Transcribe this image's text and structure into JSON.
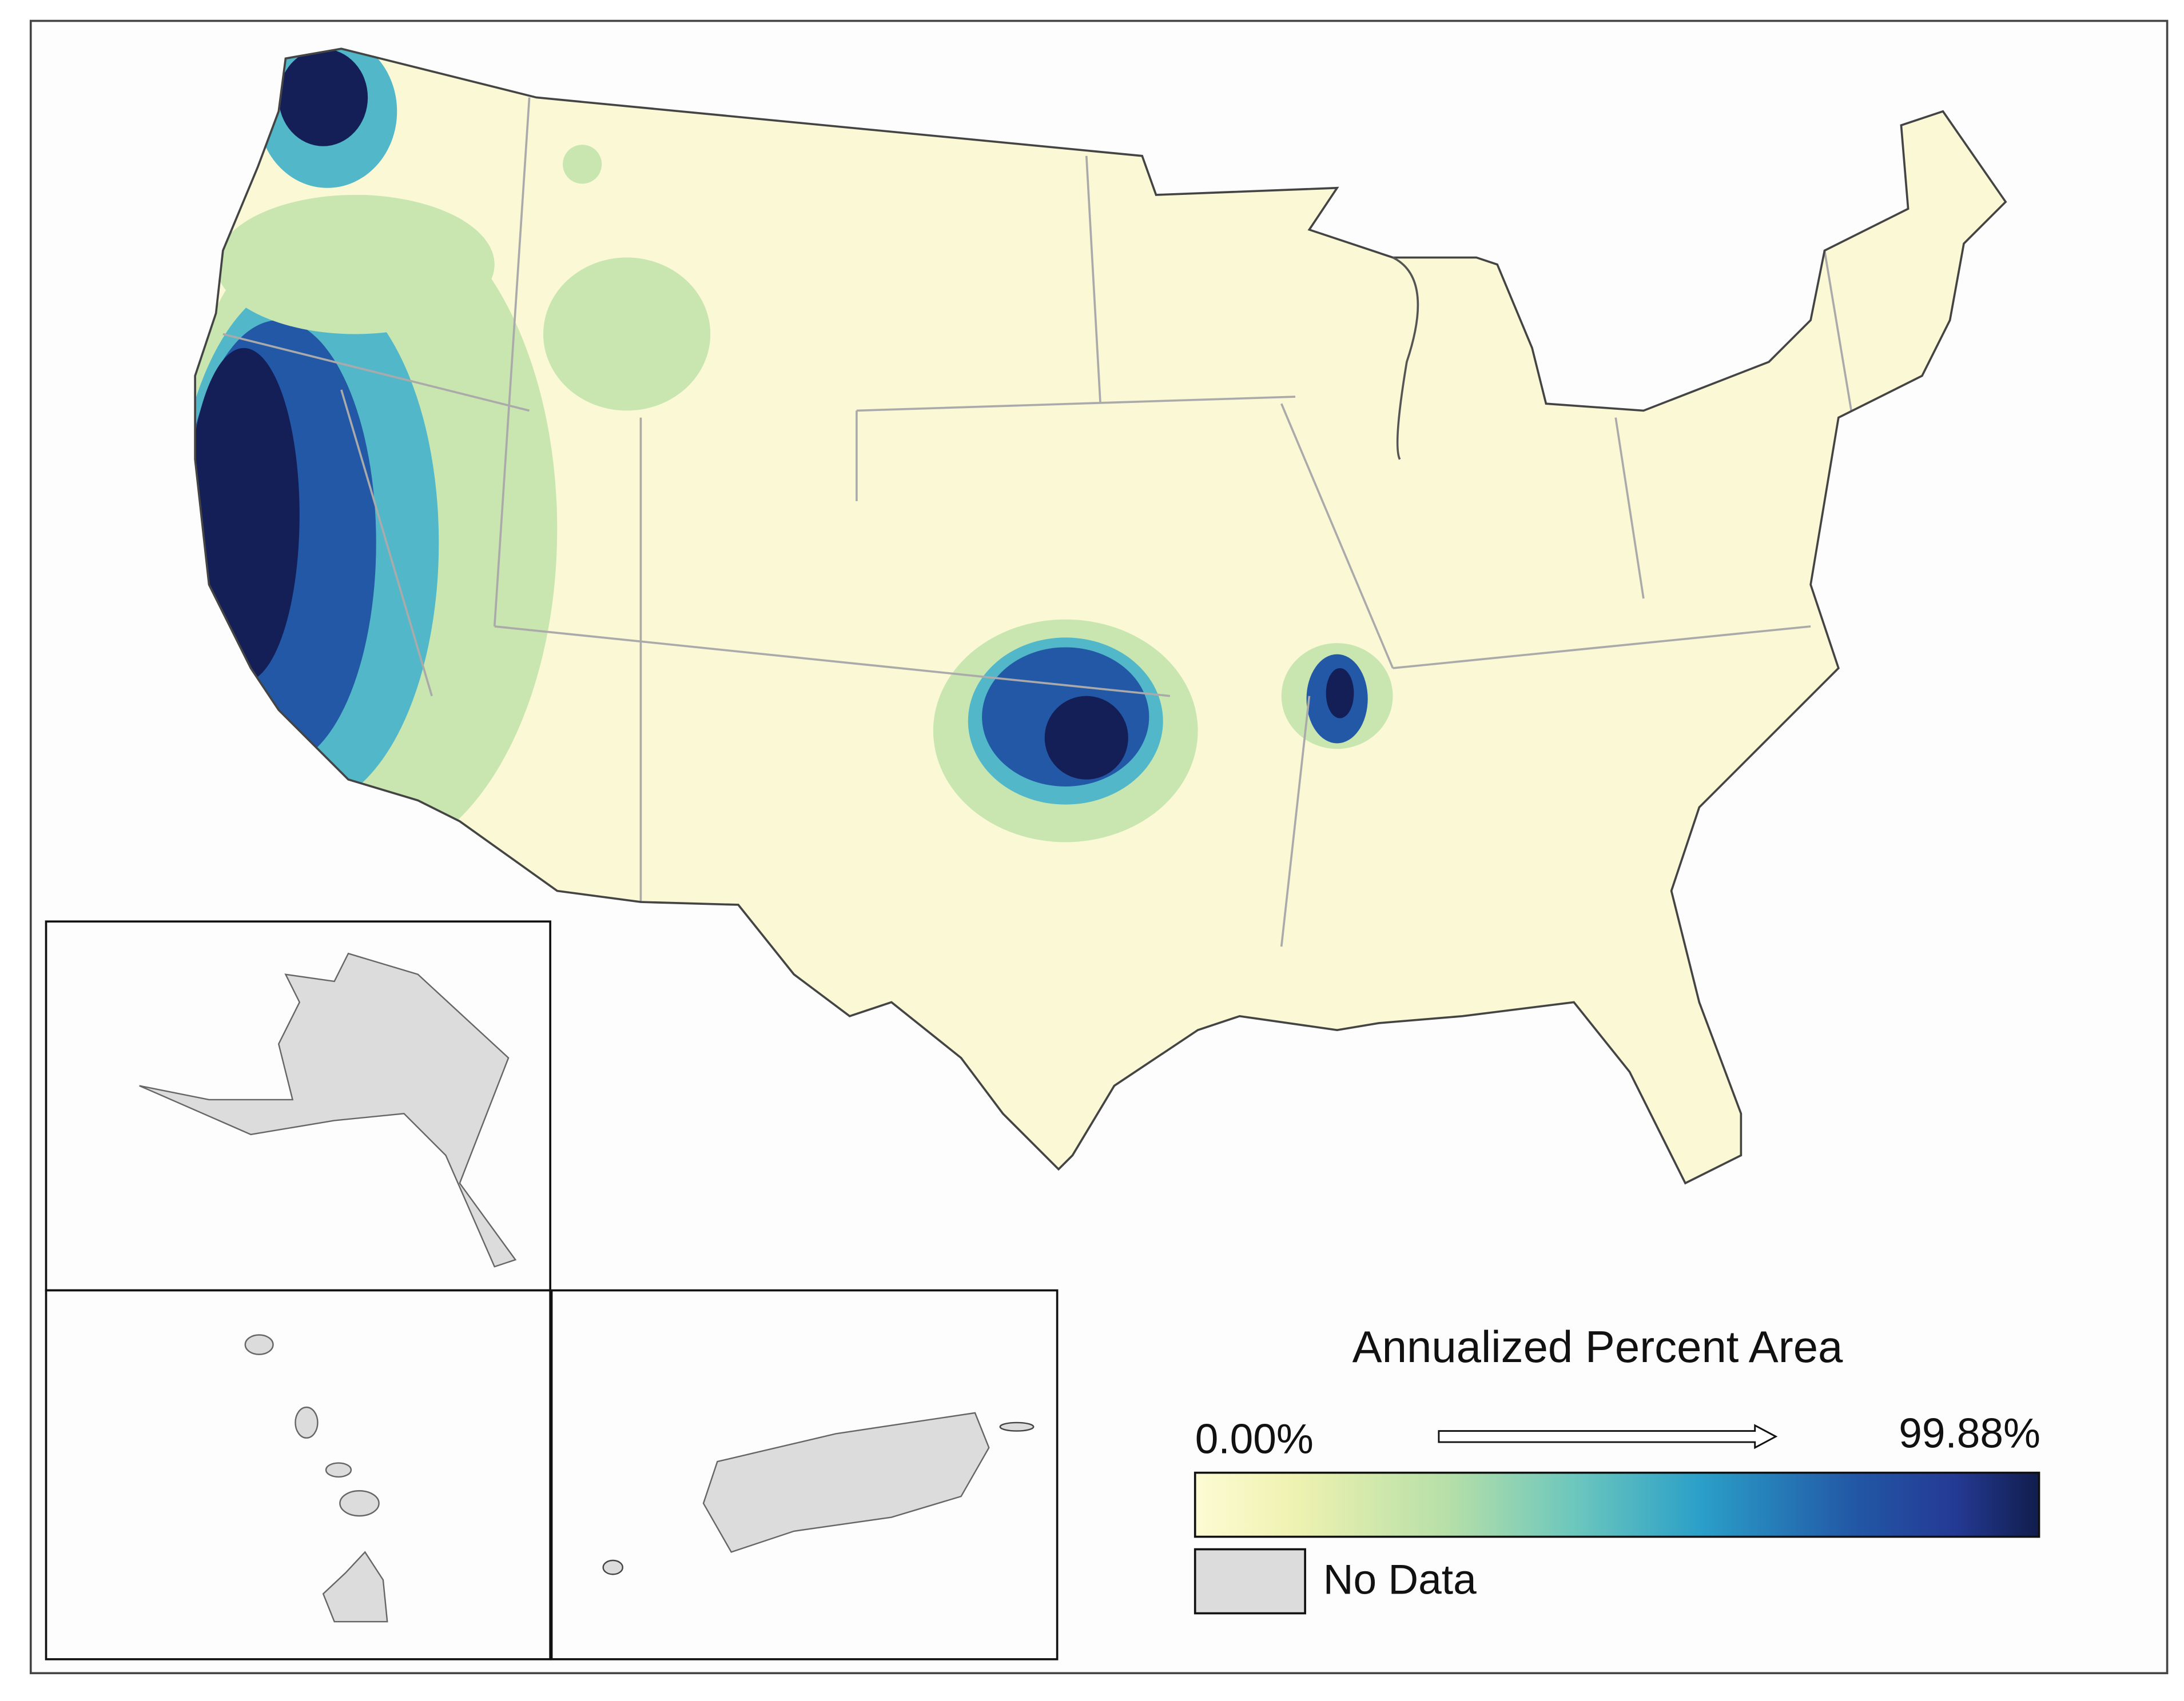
{
  "legend": {
    "title": "Annualized Percent Area",
    "min_label": "0.00%",
    "max_label": "99.88%",
    "no_data_label": "No Data"
  }
}
